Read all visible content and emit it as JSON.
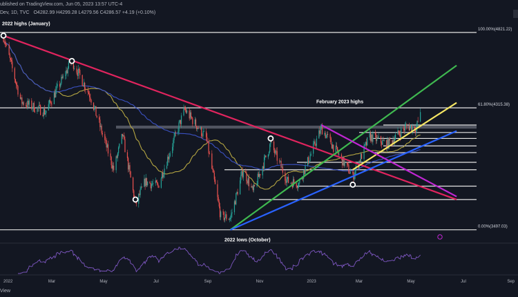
{
  "header": {
    "line1": "ublished on TradingView.com, Jun 05, 2023 13:57 UTC-4",
    "line2_symbol": "Dev, 1D, TVC",
    "line2_ohlc": "O4282.99  H4299.28  L4279.56  C4286.57  +4.19 (+0.10%)"
  },
  "footer": {
    "label": "View"
  },
  "colors": {
    "background": "#131722",
    "bull": "#26a69a",
    "bear": "#ef5350",
    "ma_fast": "#b5a642",
    "ma_slow": "#3b52c4",
    "trend_red": "#e0245e",
    "trend_green": "#3fb950",
    "trend_blue": "#2962ff",
    "trend_yellow": "#f5e663",
    "trend_magenta": "#c026d3",
    "rsi": "#7e57c2"
  },
  "chart_data": {
    "type": "candlestick",
    "x_axis_labels": [
      "2022",
      "Mar",
      "May",
      "Jul",
      "Sep",
      "Nov",
      "2023",
      "Mar",
      "May",
      "Jul",
      "Sep"
    ],
    "y_range": [
      3440,
      4900
    ],
    "annotations": {
      "highs_2022": "2022 highs (January)",
      "feb_highs": "February 2023 highs",
      "lows_2022": "2022 lows (October)"
    },
    "fib_levels": [
      {
        "label": "100.00%(4821.22)",
        "value": 4821.22
      },
      {
        "label": "61.80%(4315.38)",
        "value": 4315.38
      },
      {
        "label": "0.00%(3497.03)",
        "value": 3497.03
      }
    ],
    "anchors": [
      {
        "date": "2022-01-03",
        "close": 4796
      },
      {
        "date": "2022-01-25",
        "close": 4356
      },
      {
        "date": "2022-02-24",
        "close": 4288
      },
      {
        "date": "2022-03-29",
        "close": 4631
      },
      {
        "date": "2022-04-21",
        "close": 4394
      },
      {
        "date": "2022-05-20",
        "close": 3901
      },
      {
        "date": "2022-05-31",
        "close": 4132
      },
      {
        "date": "2022-06-16",
        "close": 3666
      },
      {
        "date": "2022-06-28",
        "close": 3821
      },
      {
        "date": "2022-07-14",
        "close": 3790
      },
      {
        "date": "2022-08-16",
        "close": 4305
      },
      {
        "date": "2022-09-12",
        "close": 4110
      },
      {
        "date": "2022-09-30",
        "close": 3586
      },
      {
        "date": "2022-10-12",
        "close": 3577
      },
      {
        "date": "2022-10-28",
        "close": 3901
      },
      {
        "date": "2022-11-09",
        "close": 3749
      },
      {
        "date": "2022-12-01",
        "close": 4076
      },
      {
        "date": "2022-12-22",
        "close": 3822
      },
      {
        "date": "2023-01-05",
        "close": 3808
      },
      {
        "date": "2023-02-02",
        "close": 4179
      },
      {
        "date": "2023-03-13",
        "close": 3855
      },
      {
        "date": "2023-04-03",
        "close": 4124
      },
      {
        "date": "2023-04-25",
        "close": 4071
      },
      {
        "date": "2023-05-19",
        "close": 4192
      },
      {
        "date": "2023-05-31",
        "close": 4180
      },
      {
        "date": "2023-06-05",
        "close": 4287
      }
    ],
    "horizontal_levels": [
      4821.22,
      4315.38,
      4200,
      4150,
      4110,
      4060,
      4015,
      3950,
      3900,
      3790,
      3700,
      3497.03
    ],
    "trendlines": [
      {
        "name": "2022 downtrend",
        "color": "trend_red",
        "from": [
          "2022-01-03",
          4800
        ],
        "to": [
          "2023-07-20",
          3700
        ]
      },
      {
        "name": "channel upper",
        "color": "trend_green",
        "from": [
          "2022-10-12",
          3497
        ],
        "to": [
          "2023-07-20",
          4600
        ]
      },
      {
        "name": "support",
        "color": "trend_blue",
        "from": [
          "2022-10-12",
          3497
        ],
        "to": [
          "2023-07-20",
          4160
        ]
      },
      {
        "name": "short-term uptrend",
        "color": "trend_yellow",
        "from": [
          "2023-03-13",
          3900
        ],
        "to": [
          "2023-07-20",
          4350
        ]
      },
      {
        "name": "channel",
        "color": "trend_magenta",
        "from": [
          "2023-02-02",
          4200
        ],
        "to": [
          "2023-07-20",
          3720
        ]
      }
    ],
    "circled_points": [
      {
        "date": "2022-01-03",
        "value": 4800
      },
      {
        "date": "2022-03-29",
        "value": 4630
      },
      {
        "date": "2022-06-16",
        "value": 3700
      },
      {
        "date": "2022-12-01",
        "value": 4110
      },
      {
        "date": "2023-03-13",
        "value": 3800
      }
    ],
    "indicators": [
      "moving average (fast)",
      "moving average (slow)",
      "RSI"
    ]
  }
}
